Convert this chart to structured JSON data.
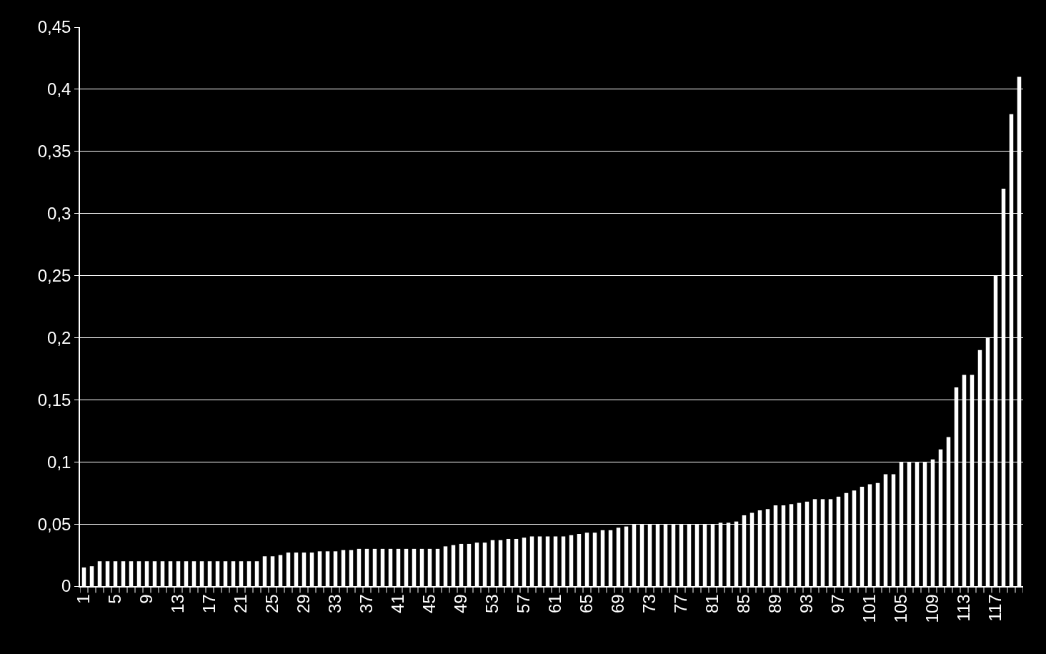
{
  "chart_data": {
    "type": "bar",
    "categories": [
      "1",
      null,
      null,
      null,
      "5",
      null,
      null,
      null,
      "9",
      null,
      null,
      null,
      "13",
      null,
      null,
      null,
      "17",
      null,
      null,
      null,
      "21",
      null,
      null,
      null,
      "25",
      null,
      null,
      null,
      "29",
      null,
      null,
      null,
      "33",
      null,
      null,
      null,
      "37",
      null,
      null,
      null,
      "41",
      null,
      null,
      null,
      "45",
      null,
      null,
      null,
      "49",
      null,
      null,
      null,
      "53",
      null,
      null,
      null,
      "57",
      null,
      null,
      null,
      "61",
      null,
      null,
      null,
      "65",
      null,
      null,
      null,
      "69",
      null,
      null,
      null,
      "73",
      null,
      null,
      null,
      "77",
      null,
      null,
      null,
      "81",
      null,
      null,
      null,
      "85",
      null,
      null,
      null,
      "89",
      null,
      null,
      null,
      "93",
      null,
      null,
      null,
      "97",
      null,
      null,
      null,
      "101",
      null,
      null,
      null,
      "105",
      null,
      null,
      null,
      "109",
      null,
      null,
      null,
      "113",
      null,
      null,
      null,
      "117",
      null,
      null,
      null
    ],
    "values": [
      0.015,
      0.016,
      0.02,
      0.02,
      0.02,
      0.02,
      0.02,
      0.02,
      0.02,
      0.02,
      0.02,
      0.02,
      0.02,
      0.02,
      0.02,
      0.02,
      0.02,
      0.02,
      0.02,
      0.02,
      0.02,
      0.02,
      0.02,
      0.024,
      0.024,
      0.025,
      0.027,
      0.027,
      0.027,
      0.027,
      0.028,
      0.028,
      0.028,
      0.029,
      0.029,
      0.03,
      0.03,
      0.03,
      0.03,
      0.03,
      0.03,
      0.03,
      0.03,
      0.03,
      0.03,
      0.03,
      0.032,
      0.033,
      0.034,
      0.034,
      0.035,
      0.035,
      0.037,
      0.037,
      0.038,
      0.038,
      0.039,
      0.04,
      0.04,
      0.04,
      0.04,
      0.04,
      0.041,
      0.042,
      0.043,
      0.043,
      0.045,
      0.045,
      0.047,
      0.048,
      0.05,
      0.05,
      0.05,
      0.05,
      0.05,
      0.05,
      0.05,
      0.05,
      0.05,
      0.05,
      0.05,
      0.051,
      0.051,
      0.052,
      0.057,
      0.059,
      0.061,
      0.062,
      0.065,
      0.065,
      0.066,
      0.067,
      0.068,
      0.07,
      0.07,
      0.07,
      0.072,
      0.075,
      0.077,
      0.08,
      0.082,
      0.083,
      0.09,
      0.09,
      0.1,
      0.1,
      0.1,
      0.1,
      0.102,
      0.11,
      0.12,
      0.16,
      0.17,
      0.17,
      0.19,
      0.2,
      0.25,
      0.32,
      0.38,
      0.41
    ],
    "color": "#ffffff",
    "ylim": [
      0,
      0.45
    ],
    "yticks": [
      0,
      {
        "value": 0.05,
        "label": "0,05"
      },
      {
        "value": 0.1,
        "label": "0,1"
      },
      {
        "value": 0.15,
        "label": "0,15"
      },
      {
        "value": 0.2,
        "label": "0,2"
      },
      {
        "value": 0.25,
        "label": "0,25"
      },
      {
        "value": 0.3,
        "label": "0,3"
      },
      {
        "value": 0.35,
        "label": "0,35"
      },
      {
        "value": 0.4,
        "label": "0,4"
      },
      {
        "value": 0.45,
        "label": "0,45"
      }
    ],
    "grid": "y"
  }
}
